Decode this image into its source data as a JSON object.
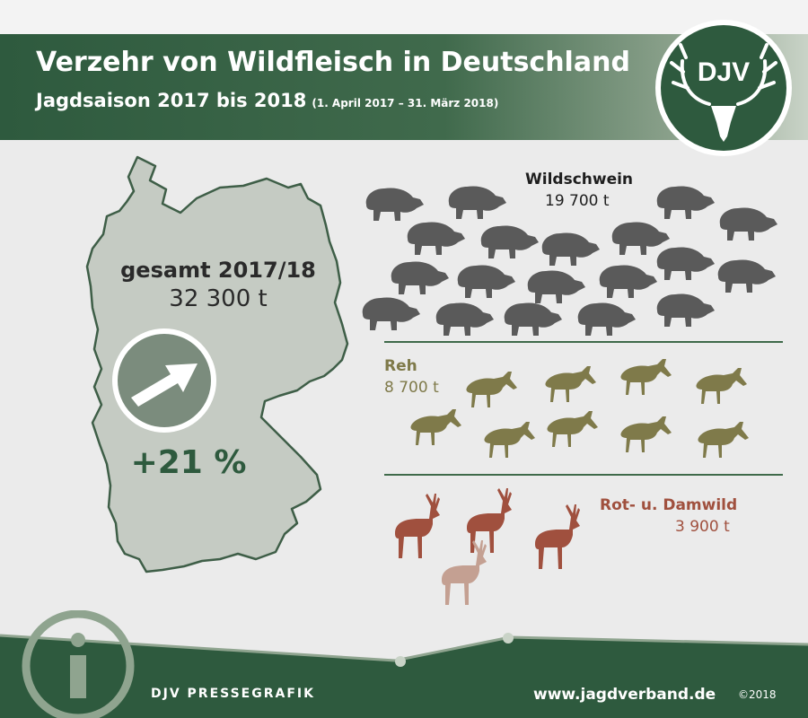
{
  "header": {
    "title": "Verzehr von Wildfleisch in Deutschland",
    "subtitle": "Jagdsaison 2017 bis 2018",
    "period": "(1. April 2017 – 31. März 2018)",
    "logo_text": "DJV"
  },
  "summary": {
    "total_label": "gesamt 2017/18",
    "total_value": "32 300 t",
    "change": "+21 %",
    "arrow_icon": "trend-up-arrow-icon"
  },
  "species": [
    {
      "name": "Wildschwein",
      "value": "19 700 t",
      "icon": "wild-boar-icon",
      "icon_count": 20,
      "color": "#5a5a5a"
    },
    {
      "name": "Reh",
      "value": "8 700 t",
      "icon": "roe-deer-icon",
      "icon_count": 9,
      "color": "#7f7a4a"
    },
    {
      "name": "Rot- u. Damwild",
      "value": "3 900 t",
      "icon": "red-deer-icon",
      "icon_count": 4,
      "color": "#a0503e"
    }
  ],
  "footer": {
    "left": "DJV PRESSEGRAFIK",
    "url": "www.jagdverband.de",
    "copyright": "©2018",
    "info_icon": "info-icon"
  },
  "colors": {
    "brand_green": "#2e5a3e",
    "map_fill": "#c5cbc3",
    "boar": "#5a5a5a",
    "roe": "#7f7a4a",
    "red_deer": "#a0503e",
    "fallow_deer": "#c4a092"
  }
}
